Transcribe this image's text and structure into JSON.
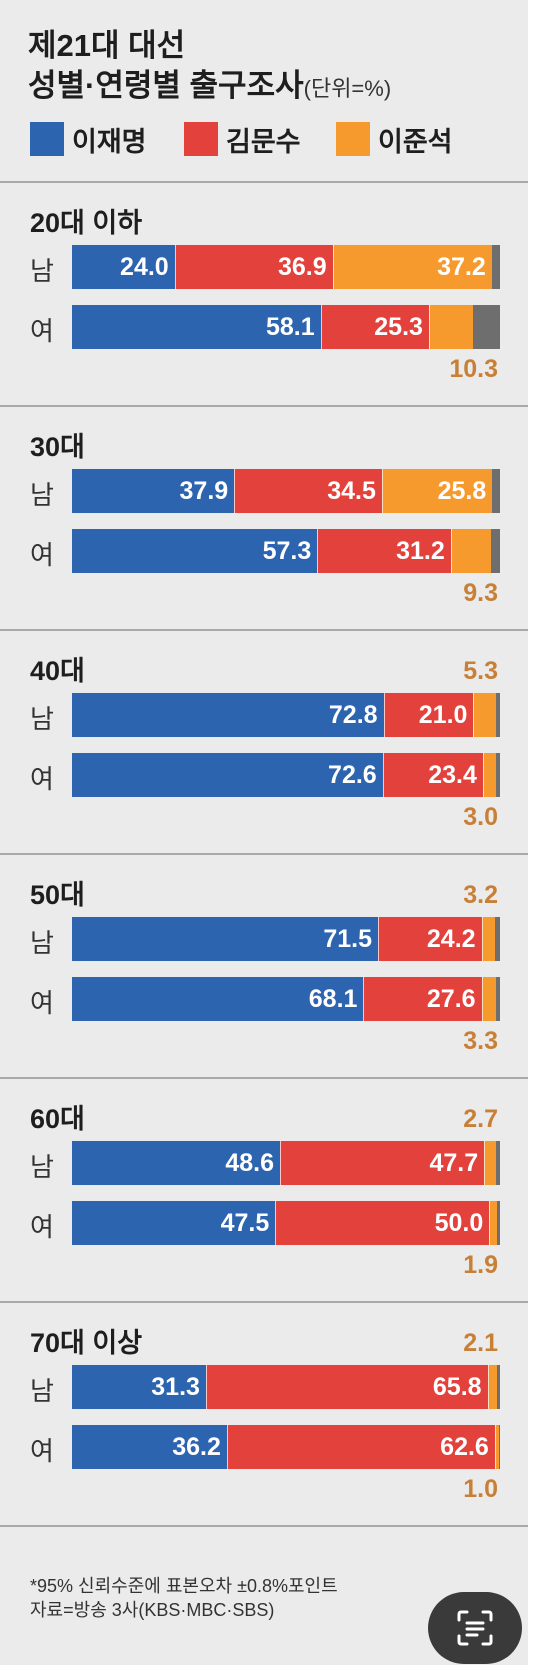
{
  "title_line1": "제21대 대선",
  "title_line2": "성별·연령별 출구조사",
  "unit": "(단위=%)",
  "colors": {
    "lee_jaemyung": "#2c64b0",
    "kim_moonsoo": "#e3413c",
    "lee_junseok": "#f79a2e",
    "other": "#6e6e6e",
    "external_label": "#c87f36",
    "background": "#ebebeb"
  },
  "footnote_line1": "*95% 신뢰수준에 표본오차 ±0.8%포인트",
  "footnote_line2": "자료=방송 3사(KBS·MBC·SBS)",
  "scan_button_icon": "scan-text-icon",
  "chart_data": {
    "type": "bar",
    "orientation": "horizontal",
    "stacked": true,
    "xlim": [
      0,
      100
    ],
    "legend_position": "top",
    "series": [
      {
        "name": "이재명",
        "color": "#2c64b0"
      },
      {
        "name": "김문수",
        "color": "#e3413c"
      },
      {
        "name": "이준석",
        "color": "#f79a2e"
      }
    ],
    "groups": [
      {
        "label": "20대 이하",
        "rows": [
          {
            "label": "남",
            "values": [
              24.0,
              36.9,
              37.2
            ]
          },
          {
            "label": "여",
            "values": [
              58.1,
              25.3,
              10.3
            ]
          }
        ]
      },
      {
        "label": "30대",
        "rows": [
          {
            "label": "남",
            "values": [
              37.9,
              34.5,
              25.8
            ]
          },
          {
            "label": "여",
            "values": [
              57.3,
              31.2,
              9.3
            ]
          }
        ]
      },
      {
        "label": "40대",
        "rows": [
          {
            "label": "남",
            "values": [
              72.8,
              21.0,
              5.3
            ]
          },
          {
            "label": "여",
            "values": [
              72.6,
              23.4,
              3.0
            ]
          }
        ]
      },
      {
        "label": "50대",
        "rows": [
          {
            "label": "남",
            "values": [
              71.5,
              24.2,
              3.2
            ]
          },
          {
            "label": "여",
            "values": [
              68.1,
              27.6,
              3.3
            ]
          }
        ]
      },
      {
        "label": "60대",
        "rows": [
          {
            "label": "남",
            "values": [
              48.6,
              47.7,
              2.7
            ]
          },
          {
            "label": "여",
            "values": [
              47.5,
              50.0,
              1.9
            ]
          }
        ]
      },
      {
        "label": "70대 이상",
        "rows": [
          {
            "label": "남",
            "values": [
              31.3,
              65.8,
              2.1
            ]
          },
          {
            "label": "여",
            "values": [
              36.2,
              62.6,
              1.0
            ]
          }
        ]
      }
    ]
  }
}
